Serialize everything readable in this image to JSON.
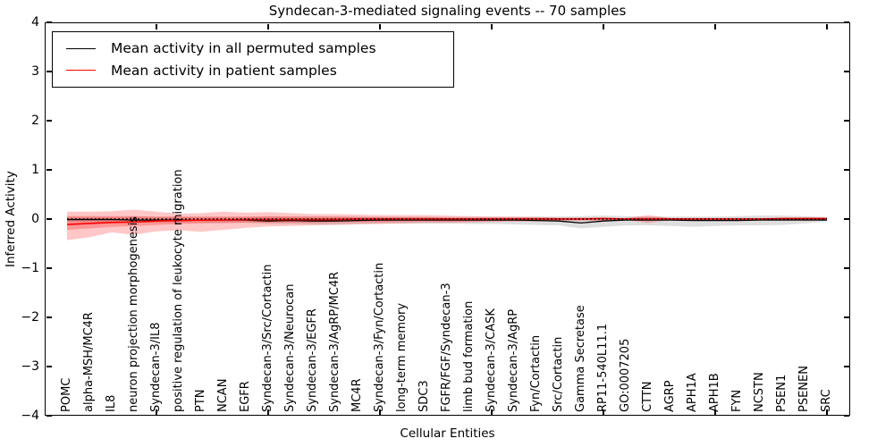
{
  "title": "Syndecan-3-mediated signaling events -- 70 samples",
  "legend": {
    "items": [
      {
        "label": "Mean activity in all permuted samples",
        "color": "#000000"
      },
      {
        "label": "Mean activity in patient samples",
        "color": "#ff0000"
      }
    ]
  },
  "axes": {
    "ylabel": "Inferred Activity",
    "xlabel": "Cellular Entities",
    "ylim": [
      -4,
      4
    ],
    "yticks": [
      4,
      3,
      2,
      1,
      0,
      -1,
      -2,
      -3,
      -4
    ],
    "xtick_every_nth_entity": 5,
    "grid": false,
    "tick_direction": "in",
    "legend_position": "upper left"
  },
  "chart_data": {
    "type": "line",
    "title": "Syndecan-3-mediated signaling events -- 70 samples",
    "xlabel": "Cellular Entities",
    "ylabel": "Inferred Activity",
    "ylim": [
      -4,
      4
    ],
    "categories": [
      "POMC",
      "alpha-MSH/MC4R",
      "IL8",
      "neuron projection morphogenesis",
      "Syndecan-3/IL8",
      "positive regulation of leukocyte migration",
      "PTN",
      "NCAN",
      "EGFR",
      "Syndecan-3/Src/Cortactin",
      "Syndecan-3/Neurocan",
      "Syndecan-3/EGFR",
      "Syndecan-3/AgRP/MC4R",
      "MC4R",
      "Syndecan-3/Fyn/Cortactin",
      "long-term memory",
      "SDC3",
      "FGFR/FGF/Syndecan-3",
      "limb bud formation",
      "Syndecan-3/CASK",
      "Syndecan-3/AgRP",
      "Fyn/Cortactin",
      "Src/Cortactin",
      "Gamma Secretase",
      "RP11-540L11.1",
      "GO:0007205",
      "CTTN",
      "AGRP",
      "APH1A",
      "APH1B",
      "FYN",
      "NCSTN",
      "PSEN1",
      "PSENEN",
      "SRC"
    ],
    "series": [
      {
        "name": "Mean activity in all permuted samples",
        "color": "#000000",
        "style": "solid",
        "width": 1.3,
        "values": [
          -0.01,
          -0.01,
          -0.01,
          -0.02,
          -0.02,
          -0.02,
          -0.02,
          -0.02,
          -0.02,
          -0.04,
          -0.03,
          -0.04,
          -0.04,
          -0.03,
          -0.02,
          -0.02,
          -0.02,
          -0.02,
          -0.02,
          -0.02,
          -0.02,
          -0.03,
          -0.04,
          -0.08,
          -0.04,
          -0.02,
          -0.02,
          -0.02,
          -0.03,
          -0.03,
          -0.03,
          -0.02,
          -0.02,
          -0.02,
          -0.02
        ]
      },
      {
        "name": "Mean activity in patient samples",
        "color": "#ff0000",
        "style": "solid",
        "width": 1.6,
        "values": [
          -0.11,
          -0.09,
          -0.07,
          -0.06,
          -0.04,
          -0.03,
          -0.02,
          -0.02,
          -0.01,
          -0.01,
          -0.01,
          -0.01,
          -0.01,
          0.0,
          0.0,
          0.0,
          0.0,
          0.0,
          0.0,
          0.0,
          0.0,
          0.0,
          0.0,
          0.0,
          0.01,
          0.0,
          0.0,
          0.0,
          0.0,
          0.0,
          0.0,
          0.0,
          0.01,
          0.01,
          0.01
        ]
      },
      {
        "name": "zero-reference",
        "color": "#000000",
        "style": "dotted",
        "width": 1.6,
        "constant": 0
      }
    ],
    "bands": [
      {
        "name": "permuted-samples-range",
        "color": "rgba(0,0,0,0.13)",
        "upper": [
          0.04,
          0.04,
          0.04,
          0.05,
          0.04,
          0.04,
          0.04,
          0.04,
          0.04,
          0.05,
          0.05,
          0.05,
          0.05,
          0.05,
          0.04,
          0.04,
          0.04,
          0.04,
          0.04,
          0.04,
          0.04,
          0.05,
          0.05,
          0.06,
          0.07,
          0.06,
          0.05,
          0.05,
          0.05,
          0.05,
          0.06,
          0.07,
          0.07,
          0.06,
          0.04
        ],
        "lower": [
          -0.06,
          -0.06,
          -0.07,
          -0.07,
          -0.07,
          -0.07,
          -0.07,
          -0.08,
          -0.08,
          -0.1,
          -0.1,
          -0.11,
          -0.11,
          -0.1,
          -0.09,
          -0.09,
          -0.09,
          -0.09,
          -0.1,
          -0.1,
          -0.11,
          -0.12,
          -0.13,
          -0.19,
          -0.16,
          -0.13,
          -0.13,
          -0.14,
          -0.16,
          -0.14,
          -0.13,
          -0.13,
          -0.12,
          -0.09,
          -0.05
        ]
      },
      {
        "name": "patient-samples-range-outer",
        "color": "rgba(255,0,0,0.22)",
        "upper": [
          0.15,
          0.15,
          0.16,
          0.19,
          0.15,
          0.11,
          0.12,
          0.15,
          0.13,
          0.14,
          0.12,
          0.1,
          0.1,
          0.09,
          0.08,
          0.08,
          0.08,
          0.07,
          0.06,
          0.05,
          0.05,
          0.04,
          0.03,
          0.03,
          0.03,
          0.02,
          0.08,
          0.02,
          0.02,
          0.02,
          0.02,
          0.02,
          0.02,
          0.03,
          0.03
        ],
        "lower": [
          -0.43,
          -0.37,
          -0.27,
          -0.32,
          -0.25,
          -0.23,
          -0.26,
          -0.22,
          -0.18,
          -0.15,
          -0.14,
          -0.13,
          -0.12,
          -0.11,
          -0.1,
          -0.09,
          -0.08,
          -0.08,
          -0.07,
          -0.06,
          -0.05,
          -0.04,
          -0.03,
          -0.03,
          -0.03,
          -0.02,
          -0.08,
          -0.02,
          -0.02,
          -0.02,
          -0.02,
          -0.02,
          -0.02,
          -0.03,
          -0.03
        ]
      },
      {
        "name": "patient-samples-range-inner",
        "color": "rgba(255,0,0,0.25)",
        "upper": [
          0.06,
          0.06,
          0.06,
          0.06,
          0.05,
          0.05,
          0.05,
          0.05,
          0.05,
          0.06,
          0.05,
          0.05,
          0.05,
          0.04,
          0.04,
          0.04,
          0.04,
          0.03,
          0.03,
          0.03,
          0.03,
          0.03,
          0.02,
          0.02,
          0.02,
          0.02,
          0.04,
          0.02,
          0.02,
          0.02,
          0.02,
          0.02,
          0.02,
          0.02,
          0.02
        ],
        "lower": [
          -0.22,
          -0.19,
          -0.16,
          -0.14,
          -0.12,
          -0.1,
          -0.09,
          -0.08,
          -0.07,
          -0.07,
          -0.07,
          -0.07,
          -0.06,
          -0.06,
          -0.06,
          -0.05,
          -0.05,
          -0.05,
          -0.05,
          -0.04,
          -0.04,
          -0.04,
          -0.03,
          -0.03,
          -0.03,
          -0.02,
          -0.04,
          -0.02,
          -0.02,
          -0.02,
          -0.02,
          -0.02,
          -0.02,
          -0.02,
          -0.02
        ]
      }
    ]
  }
}
